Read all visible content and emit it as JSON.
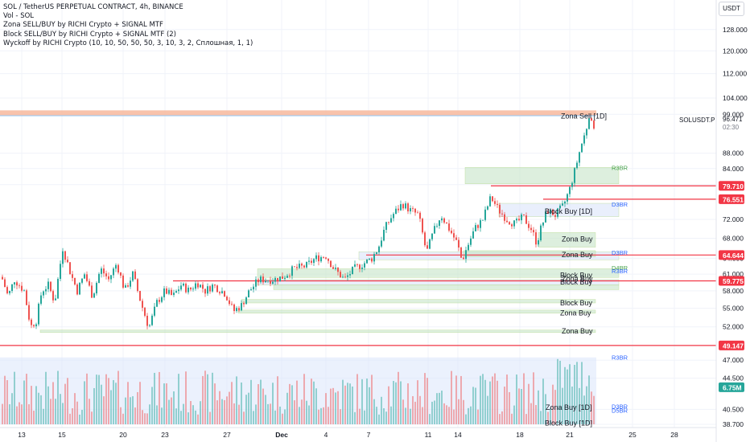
{
  "header": {
    "title": "SOL / TetherUS PERPETUAL CONTRACT, 4h, BINANCE",
    "indicators": [
      "Vol - SOL",
      "Zona SELL/BUY by RICHI Crypto + SIGNAL MTF",
      "Block SELL/BUY by RICHI Crypto + SIGNAL MTF (2)",
      "Wyckoff by RICHI Crypto  (10, 10, 50, 50, 50, 3, 10, 3, 2, Сплошная, 1, 1)"
    ],
    "currency_button": "USDT"
  },
  "symbol_info": {
    "ticker": "SOLUSDT.P",
    "price": "96.471",
    "countdown": "02:30"
  },
  "chart_data": {
    "type": "candlestick",
    "y_scale": "log",
    "ylim": [
      38.7,
      129.5
    ],
    "x_ticks": [
      "13",
      "15",
      "20",
      "23",
      "27",
      "Dec",
      "4",
      "7",
      "11",
      "14",
      "18",
      "21",
      "25",
      "28"
    ],
    "y_ticks": [
      "128.000",
      "120.000",
      "112.000",
      "104.000",
      "99.000",
      "88.000",
      "84.000",
      "80.000",
      "72.000",
      "68.000",
      "64.000",
      "61.000",
      "58.000",
      "55.000",
      "52.000",
      "47.000",
      "44.500",
      "40.500",
      "38.700"
    ],
    "price_badges": [
      {
        "label": "79.710",
        "value": 79.71,
        "color": "#f23645"
      },
      {
        "label": "76.551",
        "value": 76.551,
        "color": "#f23645"
      },
      {
        "label": "64.644",
        "value": 64.644,
        "color": "#f23645"
      },
      {
        "label": "59.775",
        "value": 59.775,
        "color": "#f23645"
      },
      {
        "label": "49.147",
        "value": 49.147,
        "color": "#f23645"
      },
      {
        "label": "6.75M",
        "value": 43.3,
        "color": "#26a69a"
      }
    ],
    "zone_labels": [
      {
        "text": "Zona Sell [1D]",
        "value": 98.6
      },
      {
        "text": "Block Buy [1D]",
        "value": 73.9
      },
      {
        "text": "Zona Buy",
        "value": 67.9
      },
      {
        "text": "Zona Buy",
        "value": 64.8
      },
      {
        "text": "Block Buy",
        "value": 60.9
      },
      {
        "text": "Zona Buy",
        "value": 60.2
      },
      {
        "text": "Block Buy",
        "value": 59.6
      },
      {
        "text": "Block Buy",
        "value": 56.0
      },
      {
        "text": "Zona Buy",
        "value": 54.3
      },
      {
        "text": "Zona Buy",
        "value": 51.4
      },
      {
        "text": "Zona Buy [1D]",
        "value": 40.8
      },
      {
        "text": "Block Buy [1D]",
        "value": 38.9
      }
    ],
    "level_tags": [
      {
        "text": "R3BR",
        "value": 84.3,
        "color": "#43a047"
      },
      {
        "text": "D3BR",
        "value": 75.4,
        "color": "#2962ff"
      },
      {
        "text": "D3BR",
        "value": 65.2,
        "color": "#2962ff"
      },
      {
        "text": "D4BR",
        "value": 62.2,
        "color": "#43a047"
      },
      {
        "text": "R3BR",
        "value": 61.6,
        "color": "#2962ff"
      },
      {
        "text": "R3BR",
        "value": 47.4,
        "color": "#2962ff"
      },
      {
        "text": "D3BR",
        "value": 40.9,
        "color": "#2962ff"
      },
      {
        "text": "D5BR",
        "value": 40.4,
        "color": "#2962ff"
      }
    ],
    "colors": {
      "up": "#26a69a",
      "down": "#ef5350",
      "level": "#f23645",
      "zone": "#c8e6c9",
      "block": "#dbe5fb"
    }
  }
}
